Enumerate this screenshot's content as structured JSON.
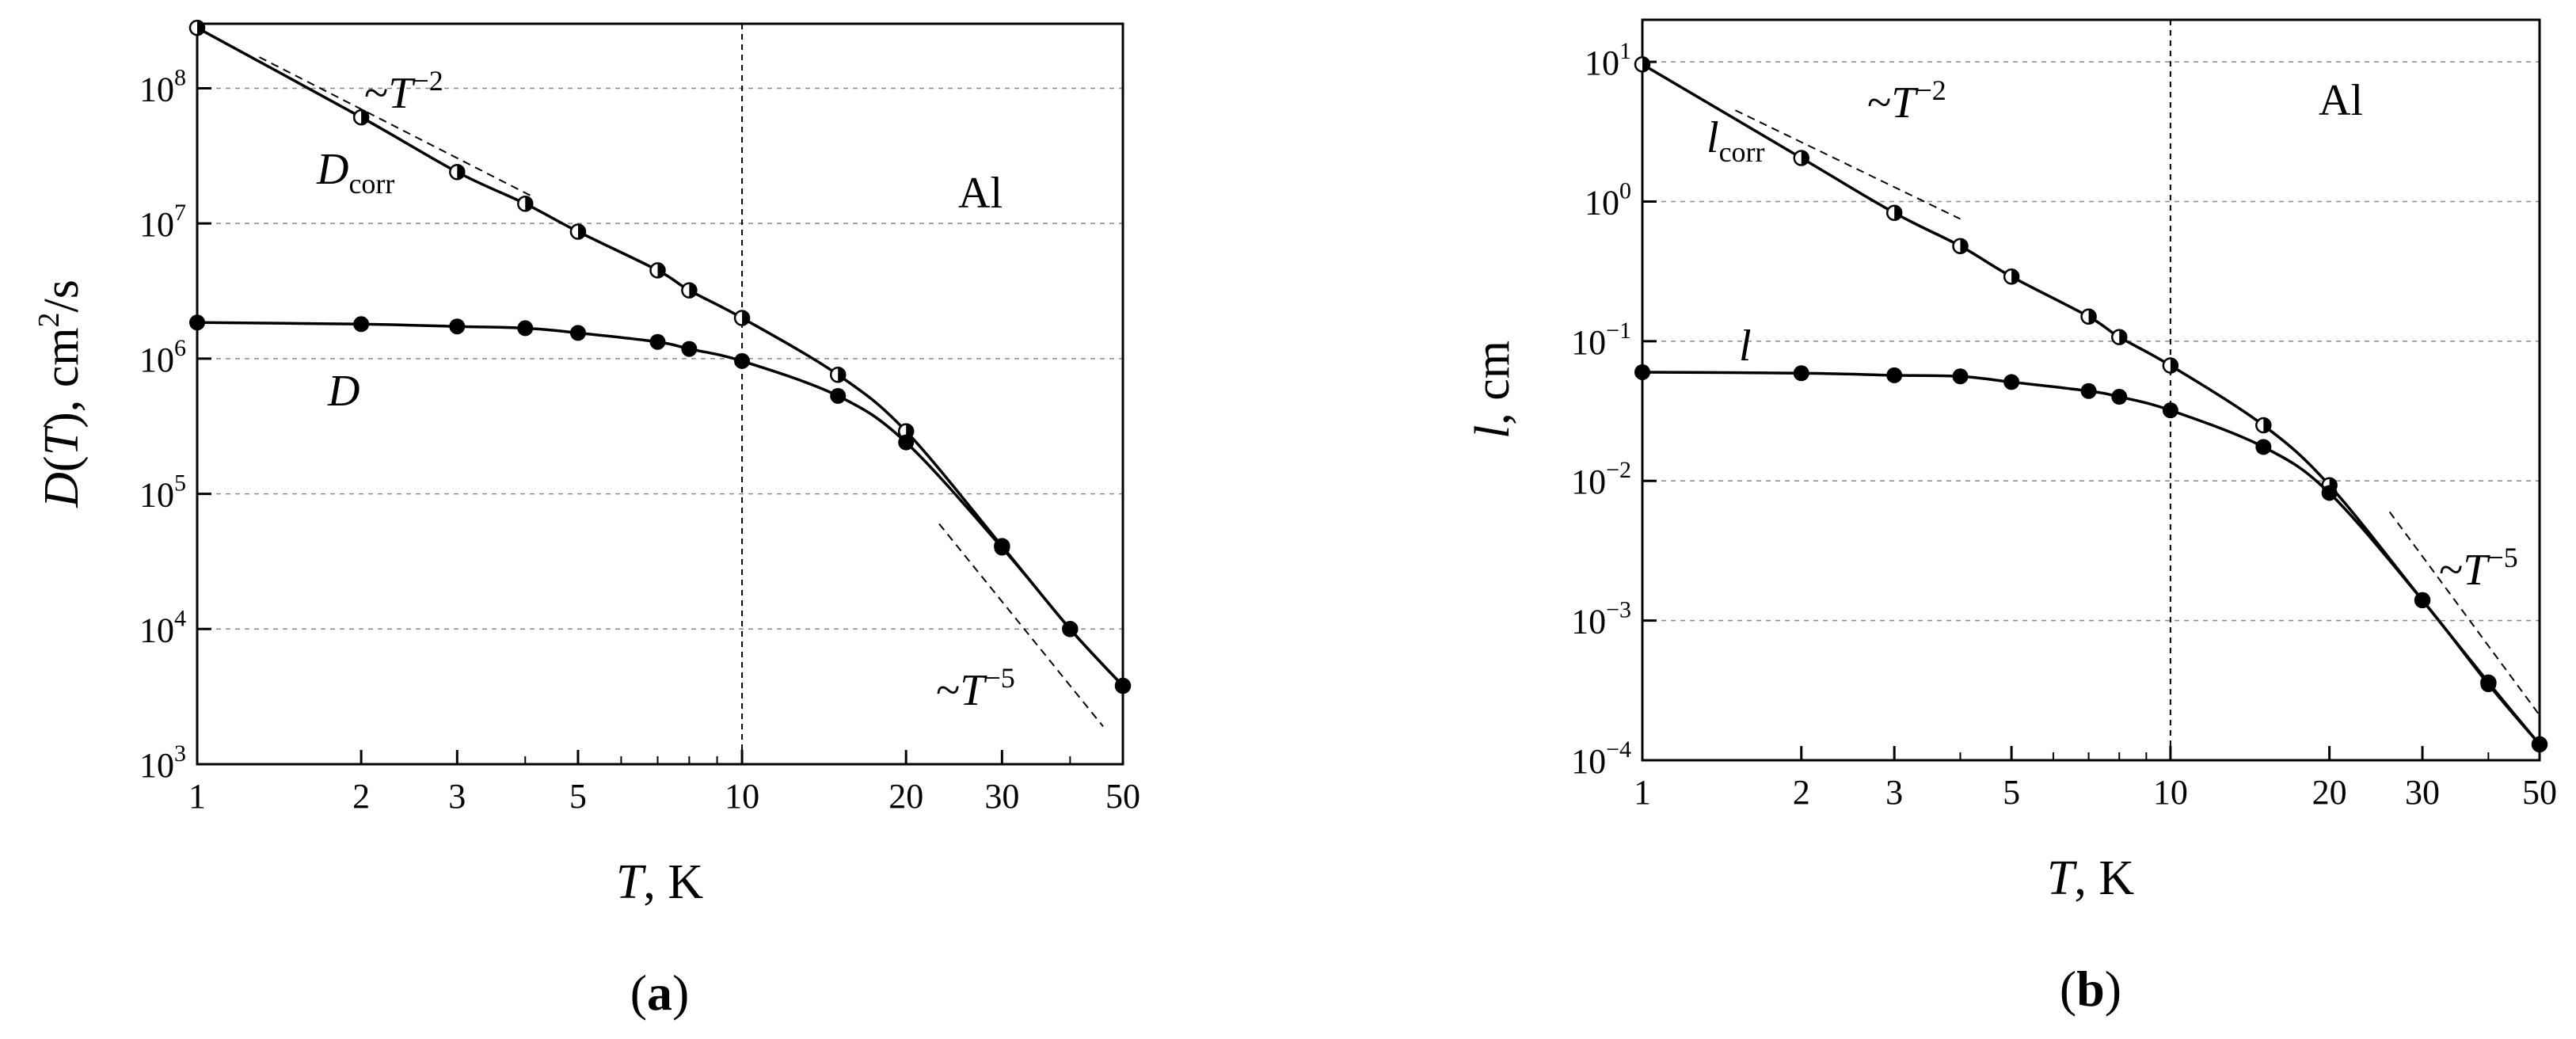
{
  "chart_data": [
    {
      "type": "line",
      "panel_label": "a",
      "material": "Al",
      "xscale": "log",
      "yscale": "log",
      "xlim": [
        1,
        50
      ],
      "ylim": [
        1000,
        300000000
      ],
      "xticks": [
        1,
        2,
        3,
        5,
        10,
        20,
        30,
        50
      ],
      "xtick_labels": [
        "1",
        "2",
        "3",
        "5",
        "10",
        "20",
        "30",
        "50"
      ],
      "yticks": [
        1000,
        10000,
        100000,
        1000000,
        10000000,
        100000000
      ],
      "ytick_labels": [
        {
          "base": "10",
          "exp": "3"
        },
        {
          "base": "10",
          "exp": "4"
        },
        {
          "base": "10",
          "exp": "5"
        },
        {
          "base": "10",
          "exp": "6"
        },
        {
          "base": "10",
          "exp": "7"
        },
        {
          "base": "10",
          "exp": "8"
        }
      ],
      "xlabel": {
        "symbol": "T",
        "unit": ", K"
      },
      "ylabel": {
        "symbol": "D",
        "arg": "T",
        "unit_pre": ", cm",
        "unit_exp": "2",
        "unit_post": "/s"
      },
      "grid": true,
      "series": [
        {
          "name": {
            "base": "D",
            "sub": "corr"
          },
          "marker": "half-filled circle",
          "x": [
            1,
            2,
            3,
            4,
            5,
            7,
            8,
            10,
            15,
            20,
            30,
            40,
            50
          ],
          "y": [
            280000000,
            61000000,
            24000000,
            14000000,
            8700000,
            4500000,
            3200000,
            2000000,
            760000,
            290000,
            41000,
            10000,
            3800
          ]
        },
        {
          "name": {
            "base": "D",
            "sub": ""
          },
          "marker": "filled circle",
          "x": [
            1,
            2,
            3,
            4,
            5,
            7,
            8,
            10,
            15,
            20,
            30,
            40,
            50
          ],
          "y": [
            1850000,
            1800000,
            1730000,
            1680000,
            1550000,
            1330000,
            1180000,
            960000,
            530000,
            240000,
            40000,
            10000,
            3800
          ]
        }
      ],
      "reference_lines": [
        {
          "label": {
            "pre": "~",
            "base": "T",
            "exp": "−2"
          },
          "x": [
            1.3,
            4.1
          ],
          "y": [
            170000000,
            16000000
          ]
        },
        {
          "label": {
            "pre": "~",
            "base": "T",
            "exp": "−5"
          },
          "x": [
            23,
            46
          ],
          "y": [
            60000,
            1900
          ]
        }
      ]
    },
    {
      "type": "line",
      "panel_label": "b",
      "material": "Al",
      "xscale": "log",
      "yscale": "log",
      "xlim": [
        1,
        50
      ],
      "ylim": [
        0.0001,
        20
      ],
      "xticks": [
        1,
        2,
        3,
        5,
        10,
        20,
        30,
        50
      ],
      "xtick_labels": [
        "1",
        "2",
        "3",
        "5",
        "10",
        "20",
        "30",
        "50"
      ],
      "yticks": [
        0.0001,
        0.001,
        0.01,
        0.1,
        1,
        10
      ],
      "ytick_labels": [
        {
          "base": "10",
          "exp": "−4"
        },
        {
          "base": "10",
          "exp": "−3"
        },
        {
          "base": "10",
          "exp": "−2"
        },
        {
          "base": "10",
          "exp": "−1"
        },
        {
          "base": "10",
          "exp": "0"
        },
        {
          "base": "10",
          "exp": "1"
        }
      ],
      "xlabel": {
        "symbol": "T",
        "unit": ", K"
      },
      "ylabel": {
        "symbol": "l",
        "unit": ", cm"
      },
      "grid": true,
      "series": [
        {
          "name": {
            "base": "l",
            "sub": "corr"
          },
          "marker": "half-filled circle",
          "x": [
            1,
            2,
            3,
            4,
            5,
            7,
            8,
            10,
            15,
            20,
            30,
            40,
            50
          ],
          "y": [
            9.6,
            2.05,
            0.83,
            0.48,
            0.29,
            0.15,
            0.107,
            0.067,
            0.025,
            0.0093,
            0.0014,
            0.00036,
            0.00013
          ]
        },
        {
          "name": {
            "base": "l",
            "sub": ""
          },
          "marker": "filled circle",
          "x": [
            1,
            2,
            3,
            4,
            5,
            7,
            8,
            10,
            15,
            20,
            30,
            40,
            50
          ],
          "y": [
            0.06,
            0.059,
            0.057,
            0.056,
            0.051,
            0.044,
            0.04,
            0.032,
            0.0175,
            0.0082,
            0.0014,
            0.00035,
            0.00013
          ]
        }
      ],
      "reference_lines": [
        {
          "label": {
            "pre": "~",
            "base": "T",
            "exp": "−2"
          },
          "x": [
            1.5,
            4.0
          ],
          "y": [
            4.5,
            0.75
          ]
        },
        {
          "label": {
            "pre": "~",
            "base": "T",
            "exp": "−5"
          },
          "x": [
            26,
            50
          ],
          "y": [
            0.006,
            0.00021
          ]
        }
      ]
    }
  ]
}
